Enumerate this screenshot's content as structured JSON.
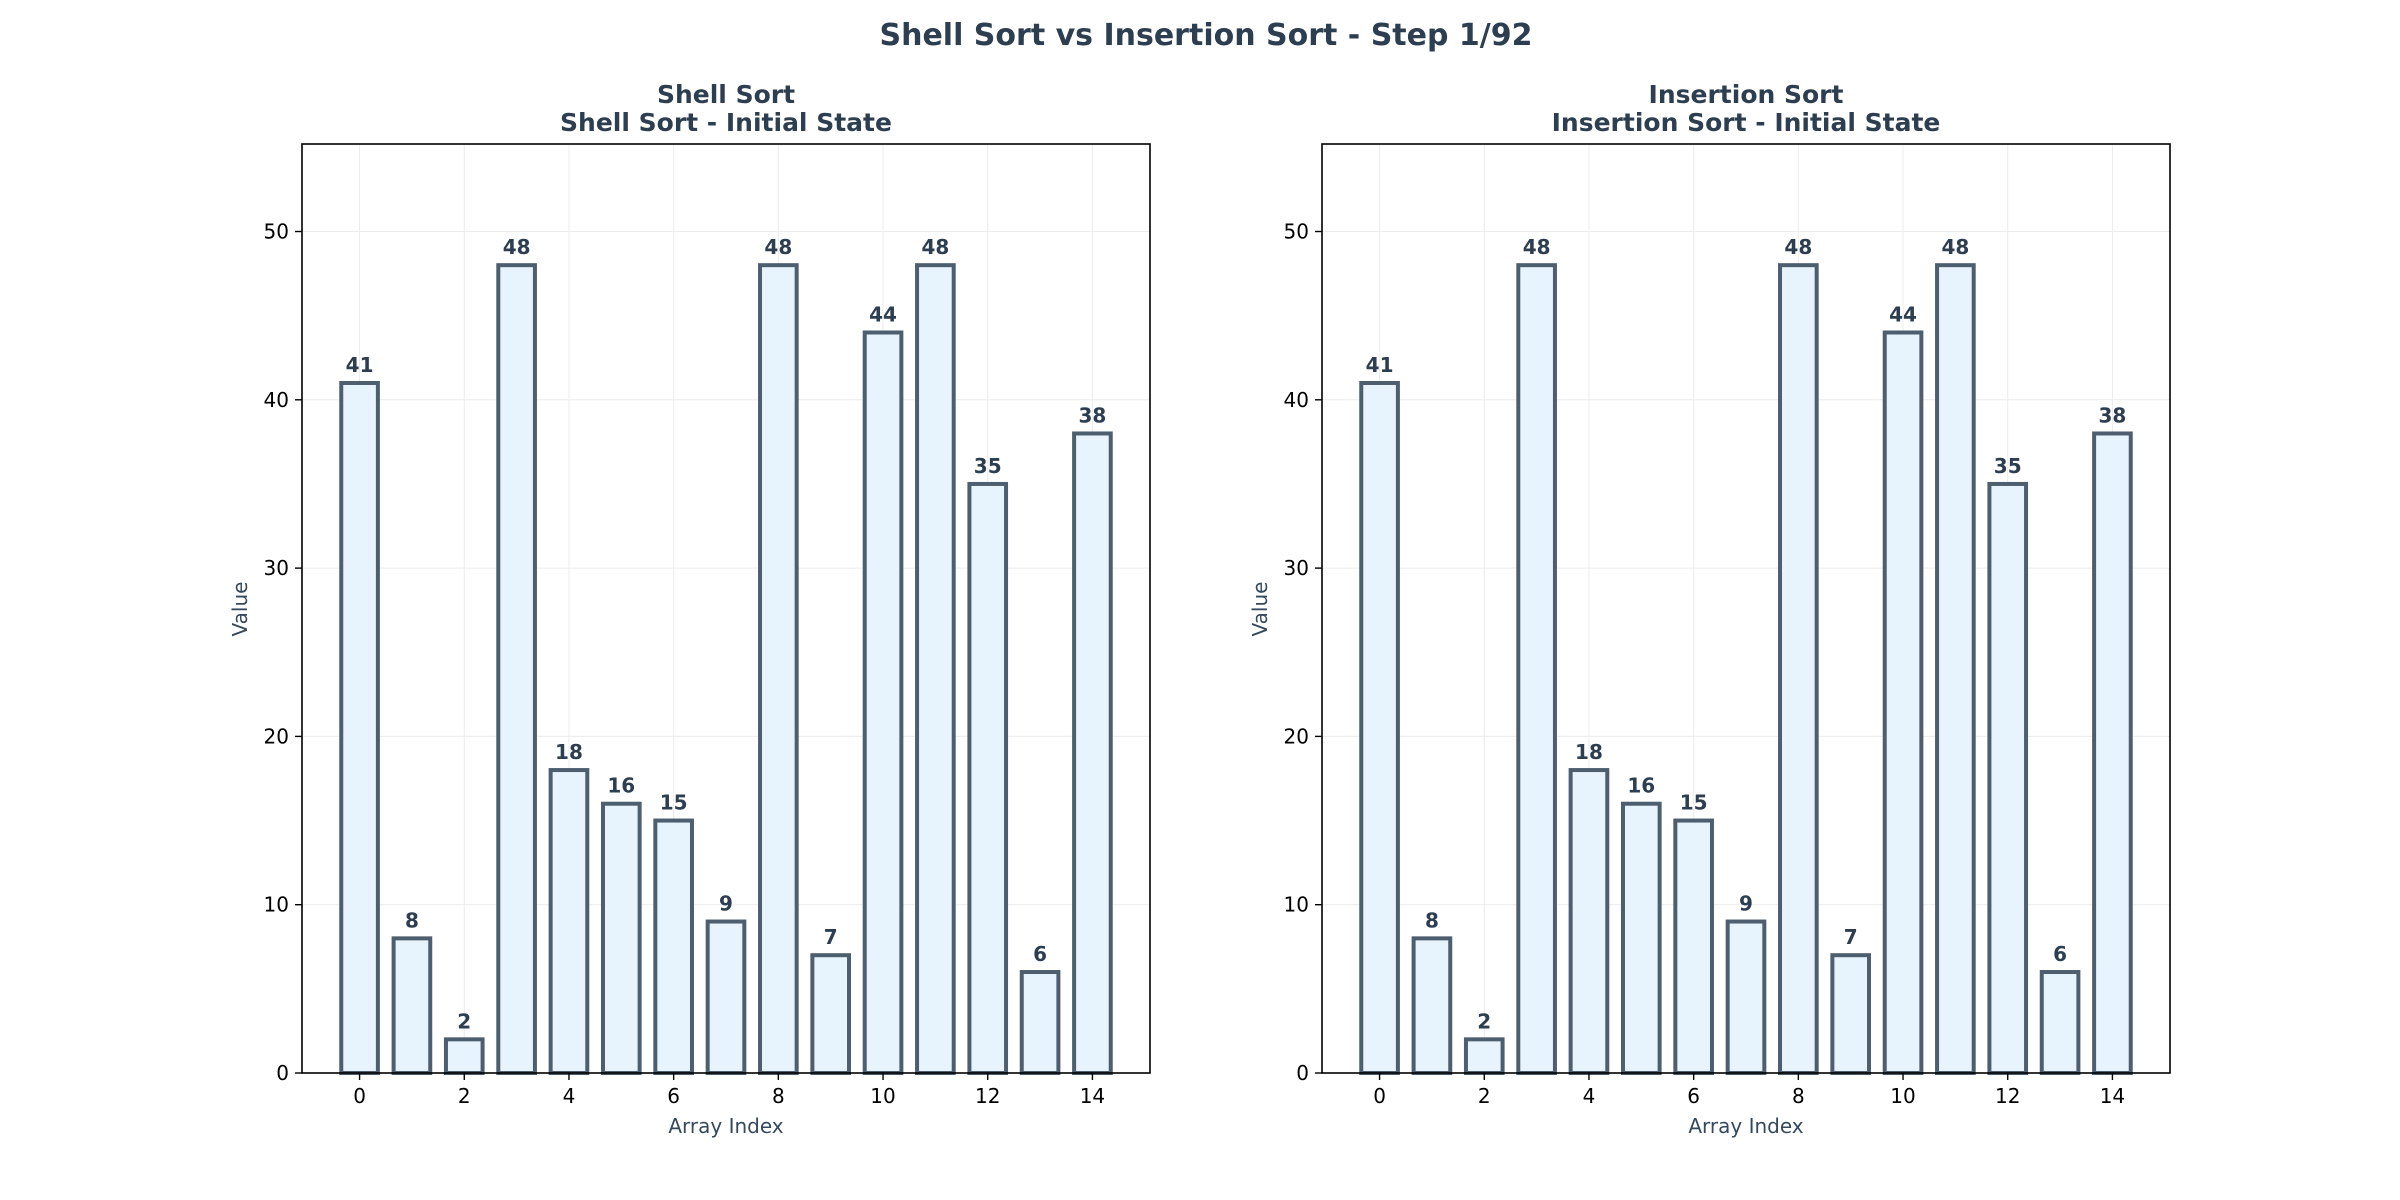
{
  "figure": {
    "title": "Shell Sort vs Insertion Sort - Step 1/92"
  },
  "colors": {
    "bar_fill": "#e8f4fd",
    "bar_edge": "#4d5e6f",
    "title_text": "#2c3e50",
    "label_text": "#34495e",
    "grid": "#ececec"
  },
  "chart_data": [
    {
      "type": "bar",
      "title": "Shell Sort",
      "subtitle": "Shell Sort - Initial State",
      "xlabel": "Array Index",
      "ylabel": "Value",
      "categories": [
        0,
        1,
        2,
        3,
        4,
        5,
        6,
        7,
        8,
        9,
        10,
        11,
        12,
        13,
        14
      ],
      "values": [
        41,
        8,
        2,
        48,
        18,
        16,
        15,
        9,
        48,
        7,
        44,
        48,
        35,
        6,
        38
      ],
      "xticks": [
        0,
        2,
        4,
        6,
        8,
        10,
        12,
        14
      ],
      "yticks": [
        0,
        10,
        20,
        30,
        40,
        50
      ],
      "xlim": [
        -1.1,
        15.1
      ],
      "ylim": [
        0,
        55.2
      ],
      "grid": true,
      "data_labels": true
    },
    {
      "type": "bar",
      "title": "Insertion Sort",
      "subtitle": "Insertion Sort - Initial State",
      "xlabel": "Array Index",
      "ylabel": "Value",
      "categories": [
        0,
        1,
        2,
        3,
        4,
        5,
        6,
        7,
        8,
        9,
        10,
        11,
        12,
        13,
        14
      ],
      "values": [
        41,
        8,
        2,
        48,
        18,
        16,
        15,
        9,
        48,
        7,
        44,
        48,
        35,
        6,
        38
      ],
      "xticks": [
        0,
        2,
        4,
        6,
        8,
        10,
        12,
        14
      ],
      "yticks": [
        0,
        10,
        20,
        30,
        40,
        50
      ],
      "xlim": [
        -1.1,
        15.1
      ],
      "ylim": [
        0,
        55.2
      ],
      "grid": true,
      "data_labels": true
    }
  ]
}
